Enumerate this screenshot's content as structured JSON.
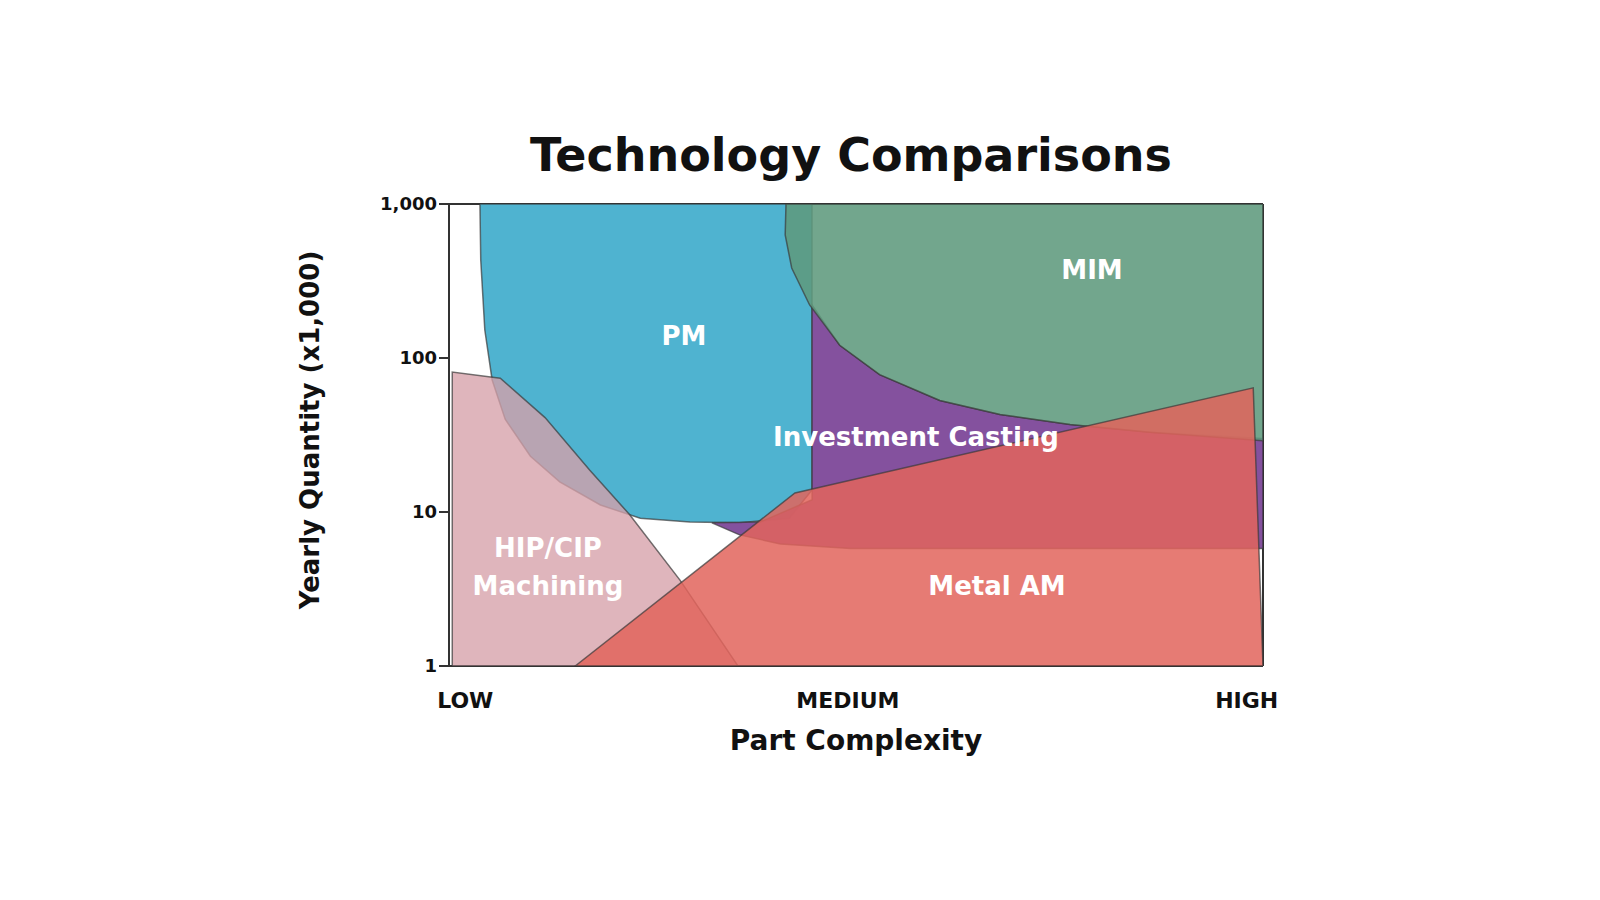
{
  "chart_data": {
    "type": "region",
    "title": "Technology Comparisons",
    "x_label": "Part Complexity",
    "y_label": "Yearly Quantity (x1,000)",
    "log": "y",
    "grid": false,
    "xlim": [
      0,
      100
    ],
    "xticks": [
      {
        "value": 2,
        "label": "LOW"
      },
      {
        "value": 49,
        "label": "MEDIUM"
      },
      {
        "value": 98,
        "label": "HIGH"
      }
    ],
    "ylim": [
      1,
      1000
    ],
    "yticks": [
      1,
      10,
      100,
      {
        "value": 1000,
        "label": "1,000"
      }
    ],
    "series": [
      {
        "name": "PM",
        "color": "#4fb3d0",
        "x": [
          3.8,
          44.6,
          44.6,
          41.8,
          35.7,
          29.6,
          23.5,
          18.6,
          13.6,
          10.0,
          6.9,
          5.3,
          4.4,
          3.9
        ],
        "values": [
          1000,
          1000,
          13.9,
          9.1,
          8.5,
          8.6,
          9.1,
          11.1,
          15.7,
          23,
          40,
          72,
          152,
          433
        ]
      },
      {
        "name": "Investment Casting",
        "color": "#7a4296",
        "x": [
          44.6,
          48.0,
          52.9,
          60.3,
          67.7,
          76.3,
          86.1,
          100,
          100,
          67.7,
          49.3,
          40.7,
          35.7,
          32.3,
          38.2,
          44.6
        ],
        "values": [
          221,
          121,
          78,
          53,
          43,
          37,
          33,
          30,
          5.8,
          5.8,
          5.8,
          6.2,
          7.1,
          8.5,
          8.6,
          12.0
        ]
      },
      {
        "name": "MIM",
        "color": "#5f9a7d",
        "x": [
          41.4,
          100,
          100,
          86.1,
          76.3,
          67.7,
          60.3,
          52.9,
          48.0,
          44.3,
          42.1,
          41.3
        ],
        "values": [
          1000,
          1000,
          29,
          33,
          37,
          43,
          53,
          78,
          121,
          221,
          384,
          629
        ]
      },
      {
        "name": "HIP/CIP Machining",
        "color": "#d6a0a9",
        "x": [
          0.4,
          0.4,
          35.5,
          28.4,
          22.2,
          17.3,
          11.8,
          6.3
        ],
        "values": [
          81,
          1,
          1,
          3.6,
          9.6,
          18.7,
          41,
          74
        ]
      },
      {
        "name": "Metal AM",
        "color": "#e2645c",
        "x": [
          15.5,
          42.5,
          98.8,
          100
        ],
        "values": [
          1,
          13.3,
          64,
          1
        ]
      }
    ]
  }
}
